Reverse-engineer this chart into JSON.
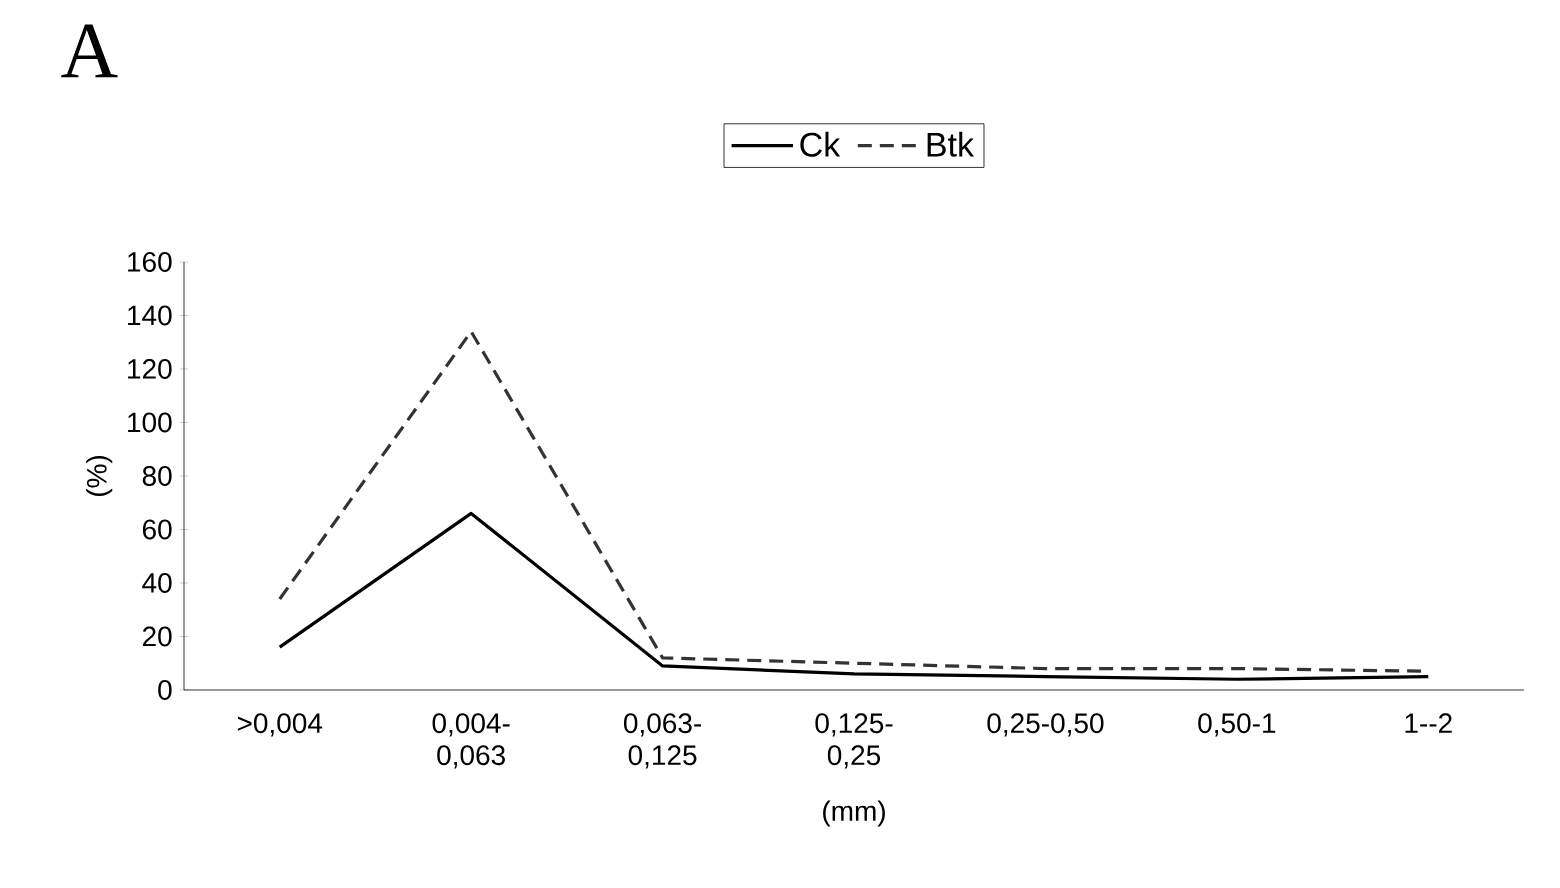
{
  "chart_data": {
    "type": "line",
    "title": "A",
    "xlabel": "(mm)",
    "ylabel": "(%)",
    "categories": [
      ">0,004",
      "0,004-0,063",
      "0,063-0,125",
      "0,125-0,25",
      "0,25-0,50",
      "0,50-1",
      "1--2"
    ],
    "series": [
      {
        "name": "Ck",
        "color": "#000000",
        "line_style": "solid",
        "values": [
          16,
          66,
          9,
          6,
          5,
          4,
          5
        ]
      },
      {
        "name": "Btk",
        "color": "#333333",
        "line_style": "dashed",
        "values": [
          34,
          134,
          12,
          10,
          8,
          8,
          7
        ]
      }
    ],
    "ylim": [
      0,
      160
    ],
    "yticks": [
      0,
      20,
      40,
      60,
      80,
      100,
      120,
      140,
      160
    ],
    "legend": "top",
    "grid": false,
    "marker": "none"
  }
}
